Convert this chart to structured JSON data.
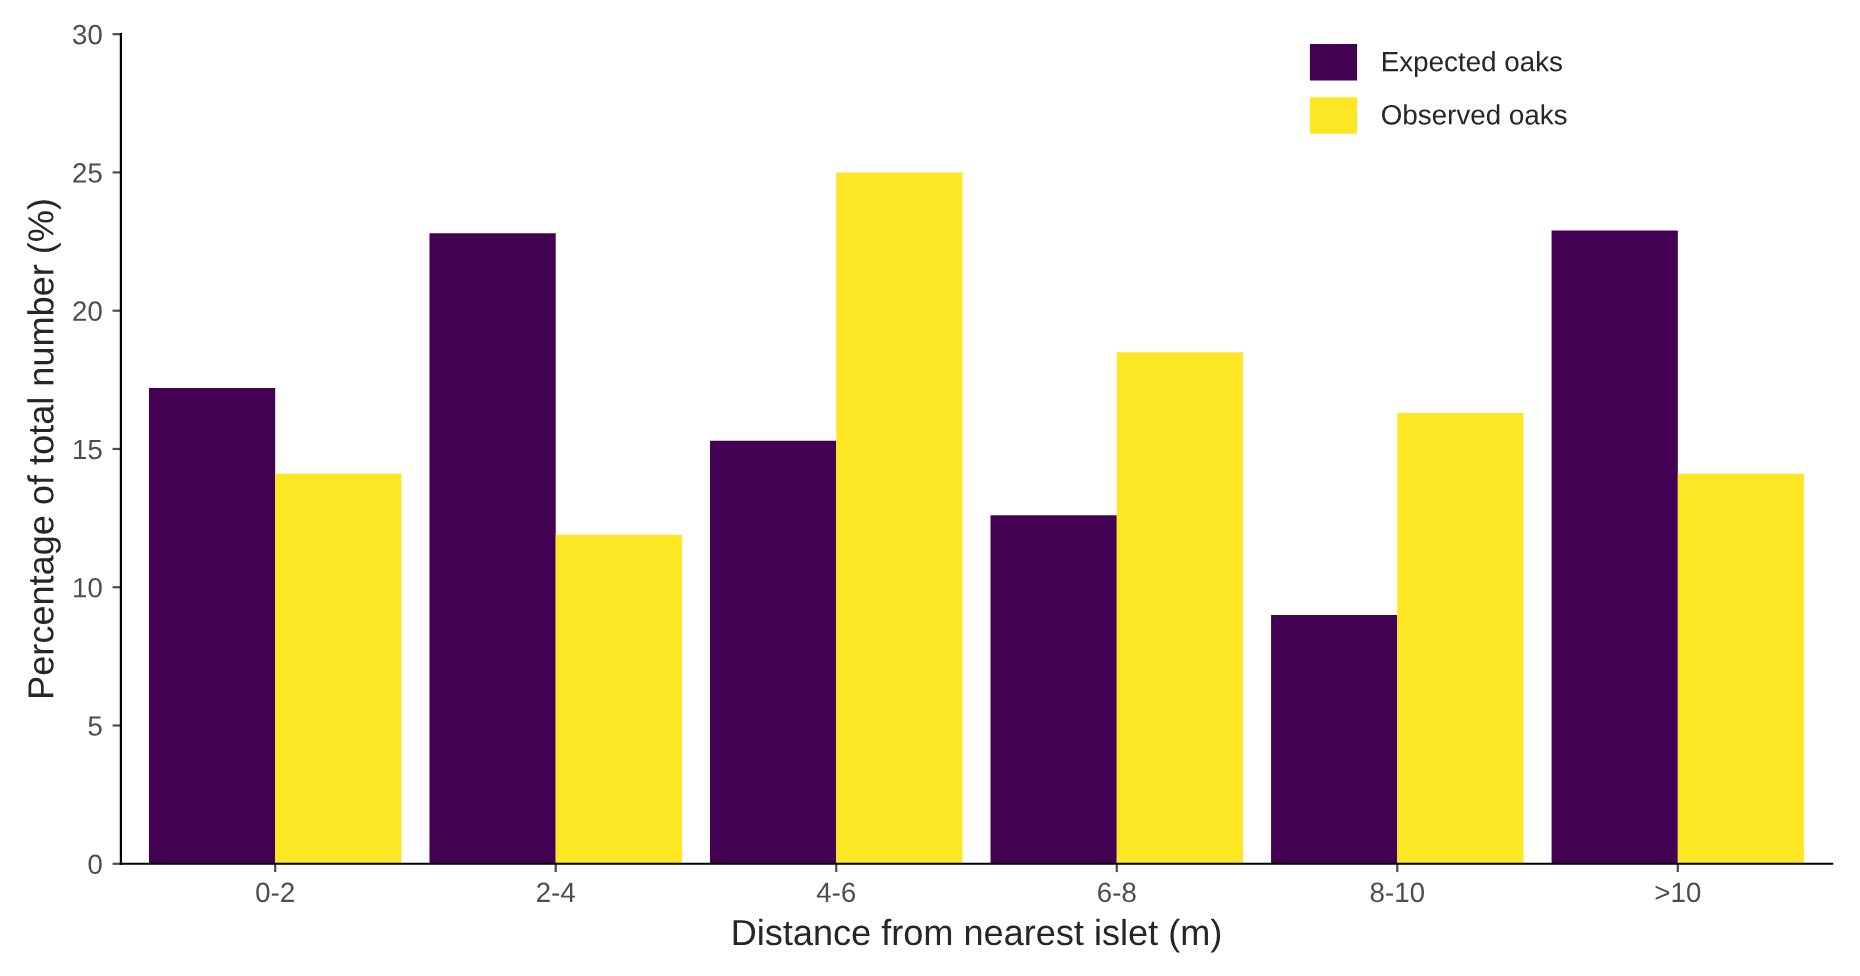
{
  "chart_data": {
    "type": "bar",
    "xlabel": "Distance from nearest islet (m)",
    "ylabel": "Percentage of total number (%)",
    "categories": [
      "0-2",
      "2-4",
      "4-6",
      "6-8",
      "8-10",
      ">10"
    ],
    "series": [
      {
        "name": "Expected oaks",
        "color": "#440154",
        "values": [
          17.2,
          22.8,
          15.3,
          12.6,
          9.0,
          22.9
        ]
      },
      {
        "name": "Observed oaks",
        "color": "#fde725",
        "values": [
          14.1,
          11.9,
          25.0,
          18.5,
          16.3,
          14.1
        ]
      }
    ],
    "ylim": [
      0,
      30
    ],
    "yticks": [
      0,
      5,
      10,
      15,
      20,
      25,
      30
    ],
    "grid": false,
    "legend": "top right"
  }
}
